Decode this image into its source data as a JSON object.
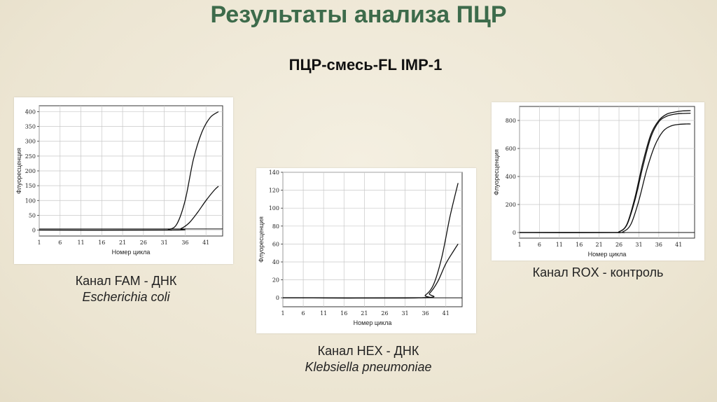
{
  "slide": {
    "title": "Результаты анализа ПЦР",
    "subtitle": "ПЦР-смесь-FL IMP-1"
  },
  "captions": [
    {
      "channel": "Канал FAM - ДНК",
      "organism": "Escherichia coli"
    },
    {
      "channel": "Канал HEX - ДНК",
      "organism": "Klebsiella pneumoniae"
    },
    {
      "channel": "Канал ROX - контроль",
      "organism": ""
    }
  ],
  "chart_data": [
    {
      "type": "line",
      "xlabel": "Номер цикла",
      "ylabel": "Флуоресценция",
      "xlim": [
        1,
        45
      ],
      "ylim": [
        -20,
        420
      ],
      "xticks": [
        "1",
        "6",
        "11",
        "16",
        "21",
        "26",
        "31",
        "36",
        "41"
      ],
      "yticks": [
        "400",
        "350",
        "300",
        "250",
        "200",
        "150",
        "100",
        "50",
        "0"
      ],
      "grid": true,
      "threshold": 4,
      "series": [
        {
          "x": [
            1,
            30,
            32,
            34,
            36,
            38,
            40,
            42,
            44
          ],
          "y": [
            0,
            0,
            2,
            20,
            100,
            240,
            330,
            380,
            400
          ]
        },
        {
          "x": [
            1,
            33,
            35,
            37,
            39,
            41,
            43,
            44
          ],
          "y": [
            0,
            0,
            5,
            25,
            60,
            100,
            135,
            148
          ]
        }
      ]
    },
    {
      "type": "line",
      "xlabel": "Номер цикла",
      "ylabel": "Флуоресценция",
      "xlim": [
        1,
        45
      ],
      "ylim": [
        -10,
        140
      ],
      "xticks": [
        "1",
        "6",
        "11",
        "16",
        "21",
        "26",
        "31",
        "36",
        "41"
      ],
      "yticks": [
        "140",
        "120",
        "100",
        "80",
        "60",
        "40",
        "20",
        "0"
      ],
      "grid": true,
      "threshold": 0,
      "series": [
        {
          "x": [
            1,
            34,
            36,
            38,
            40,
            42,
            44
          ],
          "y": [
            0,
            0,
            3,
            15,
            45,
            90,
            128
          ]
        },
        {
          "x": [
            1,
            35,
            37,
            39,
            41,
            43,
            44
          ],
          "y": [
            0,
            0,
            5,
            18,
            38,
            53,
            60
          ]
        }
      ]
    },
    {
      "type": "line",
      "xlabel": "Номер цикла",
      "ylabel": "Флуоресценция",
      "xlim": [
        1,
        45
      ],
      "ylim": [
        -40,
        900
      ],
      "xticks": [
        "1",
        "6",
        "11",
        "16",
        "21",
        "26",
        "31",
        "36",
        "41"
      ],
      "yticks": [
        "800",
        "600",
        "400",
        "200",
        "0"
      ],
      "grid": true,
      "threshold": 0,
      "series": [
        {
          "x": [
            1,
            24,
            26,
            28,
            30,
            32,
            34,
            36,
            38,
            40,
            42,
            44
          ],
          "y": [
            0,
            0,
            5,
            60,
            250,
            500,
            700,
            800,
            845,
            860,
            868,
            870
          ]
        },
        {
          "x": [
            1,
            24,
            26,
            28,
            30,
            32,
            34,
            36,
            38,
            40,
            42,
            44
          ],
          "y": [
            0,
            0,
            5,
            55,
            230,
            470,
            680,
            790,
            830,
            845,
            850,
            852
          ]
        },
        {
          "x": [
            1,
            25,
            27,
            29,
            31,
            33,
            35,
            37,
            39,
            41,
            43,
            44
          ],
          "y": [
            0,
            0,
            5,
            60,
            230,
            450,
            620,
            720,
            760,
            772,
            775,
            775
          ]
        }
      ]
    }
  ]
}
